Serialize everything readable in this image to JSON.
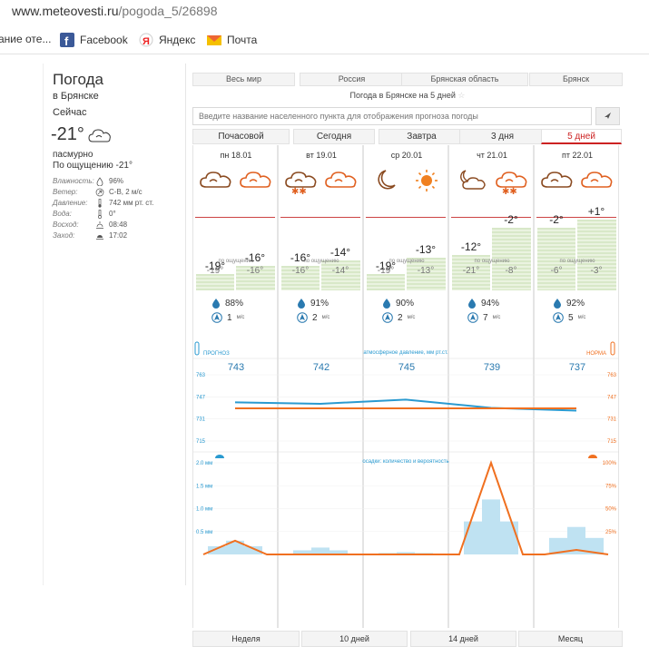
{
  "browser": {
    "url_domain": "www.meteovesti.ru",
    "url_path": "/pogoda_5/26898",
    "bookmarks": [
      {
        "label": "ание оте...",
        "icon": "none"
      },
      {
        "label": "Facebook",
        "icon": "facebook-icon"
      },
      {
        "label": "Яндекс",
        "icon": "yandex-icon"
      },
      {
        "label": "Почта",
        "icon": "mail-icon"
      }
    ]
  },
  "left": {
    "title": "Погода",
    "city": "в Брянске",
    "now_label": "Сейчас",
    "temp": "-21°",
    "condition": "пасмурно",
    "feels": "По ощущению -21°",
    "details": [
      {
        "label": "Влажность:",
        "value": "96%",
        "icon": "drop-icon"
      },
      {
        "label": "Ветер:",
        "value": "С-В, 2 м/с",
        "icon": "wind-arrow-icon"
      },
      {
        "label": "Давление:",
        "value": "742 мм рт. ст.",
        "icon": "barometer-icon"
      },
      {
        "label": "Вода:",
        "value": "0°",
        "icon": "thermometer-icon"
      },
      {
        "label": "Восход:",
        "value": "08:48",
        "icon": "sunrise-icon"
      },
      {
        "label": "Заход:",
        "value": "17:02",
        "icon": "sunset-icon"
      }
    ]
  },
  "nav": {
    "regions": [
      "Весь мир",
      "Россия",
      "Брянская область",
      "Брянск"
    ],
    "subtitle": "Погода в Брянске на 5 дней",
    "search_placeholder": "Введите название населенного пункта для отображения прогноза погоды",
    "tabs": [
      "Почасовой",
      "Сегодня",
      "Завтра",
      "3 дня",
      "5 дней"
    ],
    "active_tab": 4,
    "bottom_tabs": [
      "Неделя",
      "10 дней",
      "14 дней",
      "Месяц"
    ]
  },
  "days": [
    {
      "label": "пн 18.01",
      "icons": [
        "cloud-icon",
        "cloud-icon"
      ],
      "t_night": "-19°",
      "t_day": "-16°",
      "f_night": "-19°",
      "f_day": "-16°",
      "feel_label": "по ощущению",
      "humidity": "88%",
      "wind": "1",
      "wind_unit": "м/с",
      "pressure": "743"
    },
    {
      "label": "вт 19.01",
      "icons": [
        "cloud-snow-icon",
        "cloud-icon"
      ],
      "t_night": "-16°",
      "t_day": "-14°",
      "f_night": "-16°",
      "f_day": "-14°",
      "feel_label": "по ощущению",
      "humidity": "91%",
      "wind": "2",
      "wind_unit": "м/с",
      "pressure": "742"
    },
    {
      "label": "ср 20.01",
      "icons": [
        "moon-icon",
        "sun-icon"
      ],
      "t_night": "-19°",
      "t_day": "-13°",
      "f_night": "-19°",
      "f_day": "-13°",
      "feel_label": "по ощущению",
      "humidity": "90%",
      "wind": "2",
      "wind_unit": "м/с",
      "pressure": "745"
    },
    {
      "label": "чт 21.01",
      "icons": [
        "moon-cloud-icon",
        "cloud-snow-icon"
      ],
      "t_night": "-12°",
      "t_day": "-2°",
      "f_night": "-21°",
      "f_day": "-8°",
      "feel_label": "по ощущению",
      "humidity": "94%",
      "wind": "7",
      "wind_unit": "м/с",
      "pressure": "739"
    },
    {
      "label": "пт 22.01",
      "icons": [
        "cloud-icon",
        "cloud-icon"
      ],
      "t_night": "-2°",
      "t_day": "+1°",
      "f_night": "-6°",
      "f_day": "-3°",
      "feel_label": "по ощущению",
      "humidity": "92%",
      "wind": "5",
      "wind_unit": "м/с",
      "pressure": "737"
    }
  ],
  "charts": {
    "pressure_title": "атмосферное давление, мм рт.ст.",
    "forecast_label": "ПРОГНОЗ",
    "norm_label": "НОРМА",
    "precip_title": "осадки: количество и вероятность",
    "colors": {
      "forecast": "#2a9ad0",
      "norm": "#f07020",
      "bars": "#bfe2f2"
    }
  },
  "chart_data": [
    {
      "type": "line",
      "series": [
        {
          "name": "ПРОГНОЗ",
          "values": [
            743,
            742,
            745,
            739,
            737
          ]
        },
        {
          "name": "НОРМА",
          "values": [
            742,
            742,
            742,
            742,
            742
          ]
        }
      ],
      "ylim": [
        715,
        763
      ],
      "y_ticks": [
        "763",
        "747",
        "731",
        "715"
      ]
    },
    {
      "type": "bar",
      "categories": [
        "пн 18.01",
        "вт 19.01",
        "ср 20.01",
        "чт 21.01",
        "пт 22.01"
      ],
      "series": [
        {
          "name": "мм",
          "values": [
            0.3,
            0.15,
            0.05,
            1.2,
            0.6
          ]
        },
        {
          "name": "%",
          "values": [
            15,
            0,
            0,
            100,
            5
          ]
        }
      ],
      "y_ticks_left": [
        "2.0 мм",
        "1.5 мм",
        "1.0 мм",
        "0.5 мм"
      ],
      "y_ticks_right": [
        "100%",
        "75%",
        "50%",
        "25%"
      ]
    }
  ]
}
